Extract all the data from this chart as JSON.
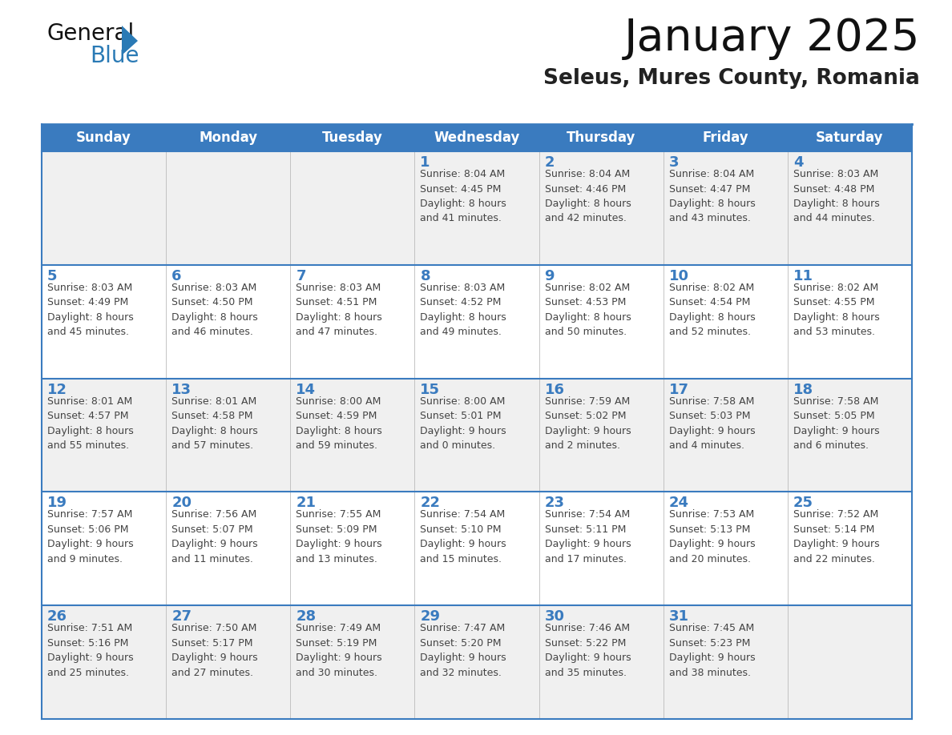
{
  "title": "January 2025",
  "subtitle": "Seleus, Mures County, Romania",
  "header_bg_color": "#3a7bbf",
  "header_text_color": "#ffffff",
  "cell_bg_odd": "#f0f0f0",
  "cell_bg_even": "#ffffff",
  "day_number_color": "#3a7bbf",
  "text_color": "#444444",
  "border_color": "#3a7bbf",
  "grid_color": "#bbbbbb",
  "days_of_week": [
    "Sunday",
    "Monday",
    "Tuesday",
    "Wednesday",
    "Thursday",
    "Friday",
    "Saturday"
  ],
  "logo_general_color": "#111111",
  "logo_blue_color": "#2a7ab5",
  "logo_triangle_color": "#2a7ab5",
  "title_color": "#111111",
  "subtitle_color": "#222222",
  "weeks": [
    [
      {
        "day": "",
        "info": ""
      },
      {
        "day": "",
        "info": ""
      },
      {
        "day": "",
        "info": ""
      },
      {
        "day": "1",
        "info": "Sunrise: 8:04 AM\nSunset: 4:45 PM\nDaylight: 8 hours\nand 41 minutes."
      },
      {
        "day": "2",
        "info": "Sunrise: 8:04 AM\nSunset: 4:46 PM\nDaylight: 8 hours\nand 42 minutes."
      },
      {
        "day": "3",
        "info": "Sunrise: 8:04 AM\nSunset: 4:47 PM\nDaylight: 8 hours\nand 43 minutes."
      },
      {
        "day": "4",
        "info": "Sunrise: 8:03 AM\nSunset: 4:48 PM\nDaylight: 8 hours\nand 44 minutes."
      }
    ],
    [
      {
        "day": "5",
        "info": "Sunrise: 8:03 AM\nSunset: 4:49 PM\nDaylight: 8 hours\nand 45 minutes."
      },
      {
        "day": "6",
        "info": "Sunrise: 8:03 AM\nSunset: 4:50 PM\nDaylight: 8 hours\nand 46 minutes."
      },
      {
        "day": "7",
        "info": "Sunrise: 8:03 AM\nSunset: 4:51 PM\nDaylight: 8 hours\nand 47 minutes."
      },
      {
        "day": "8",
        "info": "Sunrise: 8:03 AM\nSunset: 4:52 PM\nDaylight: 8 hours\nand 49 minutes."
      },
      {
        "day": "9",
        "info": "Sunrise: 8:02 AM\nSunset: 4:53 PM\nDaylight: 8 hours\nand 50 minutes."
      },
      {
        "day": "10",
        "info": "Sunrise: 8:02 AM\nSunset: 4:54 PM\nDaylight: 8 hours\nand 52 minutes."
      },
      {
        "day": "11",
        "info": "Sunrise: 8:02 AM\nSunset: 4:55 PM\nDaylight: 8 hours\nand 53 minutes."
      }
    ],
    [
      {
        "day": "12",
        "info": "Sunrise: 8:01 AM\nSunset: 4:57 PM\nDaylight: 8 hours\nand 55 minutes."
      },
      {
        "day": "13",
        "info": "Sunrise: 8:01 AM\nSunset: 4:58 PM\nDaylight: 8 hours\nand 57 minutes."
      },
      {
        "day": "14",
        "info": "Sunrise: 8:00 AM\nSunset: 4:59 PM\nDaylight: 8 hours\nand 59 minutes."
      },
      {
        "day": "15",
        "info": "Sunrise: 8:00 AM\nSunset: 5:01 PM\nDaylight: 9 hours\nand 0 minutes."
      },
      {
        "day": "16",
        "info": "Sunrise: 7:59 AM\nSunset: 5:02 PM\nDaylight: 9 hours\nand 2 minutes."
      },
      {
        "day": "17",
        "info": "Sunrise: 7:58 AM\nSunset: 5:03 PM\nDaylight: 9 hours\nand 4 minutes."
      },
      {
        "day": "18",
        "info": "Sunrise: 7:58 AM\nSunset: 5:05 PM\nDaylight: 9 hours\nand 6 minutes."
      }
    ],
    [
      {
        "day": "19",
        "info": "Sunrise: 7:57 AM\nSunset: 5:06 PM\nDaylight: 9 hours\nand 9 minutes."
      },
      {
        "day": "20",
        "info": "Sunrise: 7:56 AM\nSunset: 5:07 PM\nDaylight: 9 hours\nand 11 minutes."
      },
      {
        "day": "21",
        "info": "Sunrise: 7:55 AM\nSunset: 5:09 PM\nDaylight: 9 hours\nand 13 minutes."
      },
      {
        "day": "22",
        "info": "Sunrise: 7:54 AM\nSunset: 5:10 PM\nDaylight: 9 hours\nand 15 minutes."
      },
      {
        "day": "23",
        "info": "Sunrise: 7:54 AM\nSunset: 5:11 PM\nDaylight: 9 hours\nand 17 minutes."
      },
      {
        "day": "24",
        "info": "Sunrise: 7:53 AM\nSunset: 5:13 PM\nDaylight: 9 hours\nand 20 minutes."
      },
      {
        "day": "25",
        "info": "Sunrise: 7:52 AM\nSunset: 5:14 PM\nDaylight: 9 hours\nand 22 minutes."
      }
    ],
    [
      {
        "day": "26",
        "info": "Sunrise: 7:51 AM\nSunset: 5:16 PM\nDaylight: 9 hours\nand 25 minutes."
      },
      {
        "day": "27",
        "info": "Sunrise: 7:50 AM\nSunset: 5:17 PM\nDaylight: 9 hours\nand 27 minutes."
      },
      {
        "day": "28",
        "info": "Sunrise: 7:49 AM\nSunset: 5:19 PM\nDaylight: 9 hours\nand 30 minutes."
      },
      {
        "day": "29",
        "info": "Sunrise: 7:47 AM\nSunset: 5:20 PM\nDaylight: 9 hours\nand 32 minutes."
      },
      {
        "day": "30",
        "info": "Sunrise: 7:46 AM\nSunset: 5:22 PM\nDaylight: 9 hours\nand 35 minutes."
      },
      {
        "day": "31",
        "info": "Sunrise: 7:45 AM\nSunset: 5:23 PM\nDaylight: 9 hours\nand 38 minutes."
      },
      {
        "day": "",
        "info": ""
      }
    ]
  ]
}
